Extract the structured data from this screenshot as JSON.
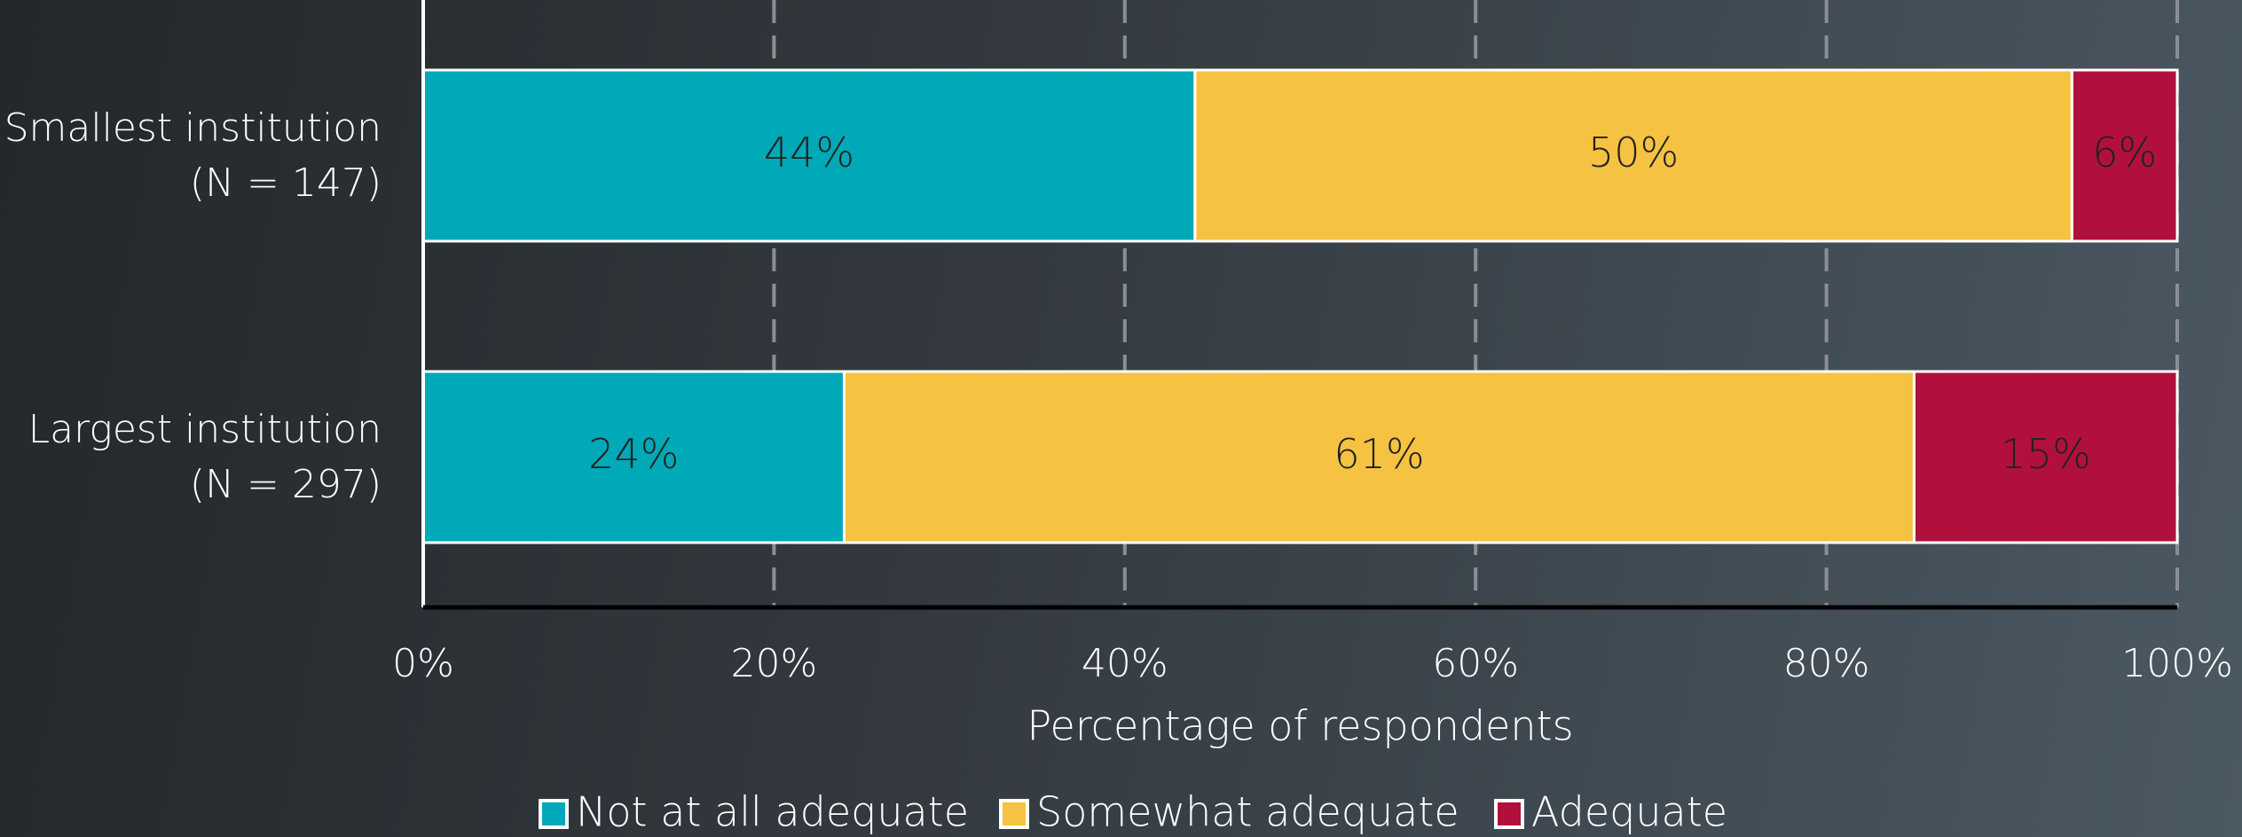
{
  "chart_data": {
    "type": "stacked_barh",
    "categories": [
      "Smallest institution (N = 147)",
      "Largest institution (N = 297)"
    ],
    "series": [
      {
        "name": "Not at all adequate",
        "color": "#00a9b7",
        "values": [
          44,
          24
        ],
        "value_labels": [
          "44%",
          "24%"
        ]
      },
      {
        "name": "Somewhat adequate",
        "color": "#f5c242",
        "values": [
          50,
          61
        ],
        "value_labels": [
          "50%",
          "61%"
        ]
      },
      {
        "name": "Adequate",
        "color": "#b2103c",
        "values": [
          6,
          15
        ],
        "value_labels": [
          "6%",
          "15%"
        ]
      }
    ],
    "xlabel": "Percentage of respondents",
    "xlim": [
      0,
      100
    ],
    "xticks": [
      {
        "value": 0,
        "label": "0%"
      },
      {
        "value": 20,
        "label": "20%"
      },
      {
        "value": 40,
        "label": "40%"
      },
      {
        "value": 60,
        "label": "60%"
      },
      {
        "value": 80,
        "label": "80%"
      },
      {
        "value": 100,
        "label": "100%"
      }
    ],
    "grid": true,
    "legend": "bottom"
  }
}
